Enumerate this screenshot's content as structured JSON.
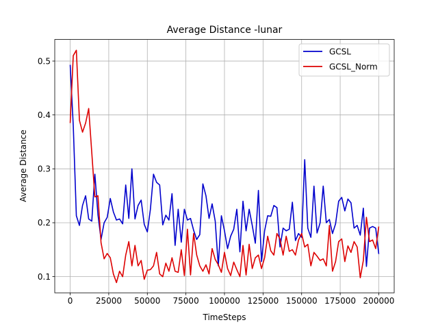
{
  "chart_data": {
    "type": "line",
    "title": "Average Distance -lunar",
    "xlabel": "TimeSteps",
    "ylabel": "Average Distance",
    "xlim": [
      -10000,
      210000
    ],
    "ylim": [
      0.07,
      0.54
    ],
    "xticks": [
      0,
      25000,
      50000,
      75000,
      100000,
      125000,
      150000,
      175000,
      200000
    ],
    "yticks": [
      0.1,
      0.2,
      0.3,
      0.4,
      0.5
    ],
    "grid": true,
    "legend_position": "top-right",
    "series": [
      {
        "name": "GCSL",
        "color": "#0000cc",
        "x": [
          0,
          2000,
          4000,
          6000,
          8000,
          10000,
          12000,
          14000,
          16000,
          18000,
          20000,
          22000,
          24000,
          26000,
          28000,
          30000,
          32000,
          34000,
          36000,
          38000,
          40000,
          42000,
          44000,
          46000,
          48000,
          50000,
          52000,
          54000,
          56000,
          58000,
          60000,
          62000,
          64000,
          66000,
          68000,
          70000,
          72000,
          74000,
          76000,
          78000,
          80000,
          82000,
          84000,
          86000,
          88000,
          90000,
          92000,
          94000,
          96000,
          98000,
          100000,
          102000,
          104000,
          106000,
          108000,
          110000,
          112000,
          114000,
          116000,
          118000,
          120000,
          122000,
          124000,
          126000,
          128000,
          130000,
          132000,
          134000,
          136000,
          138000,
          140000,
          142000,
          144000,
          146000,
          148000,
          150000,
          152000,
          154000,
          156000,
          158000,
          160000,
          162000,
          164000,
          166000,
          168000,
          170000,
          172000,
          174000,
          176000,
          178000,
          180000,
          182000,
          184000,
          186000,
          188000,
          190000,
          192000,
          194000,
          196000,
          198000,
          200000
        ],
        "values": [
          0.493,
          0.38,
          0.213,
          0.195,
          0.232,
          0.25,
          0.207,
          0.203,
          0.29,
          0.215,
          0.169,
          0.2,
          0.21,
          0.245,
          0.22,
          0.205,
          0.207,
          0.198,
          0.27,
          0.208,
          0.3,
          0.207,
          0.232,
          0.242,
          0.197,
          0.183,
          0.225,
          0.29,
          0.275,
          0.27,
          0.196,
          0.214,
          0.205,
          0.254,
          0.158,
          0.225,
          0.164,
          0.225,
          0.205,
          0.208,
          0.186,
          0.169,
          0.178,
          0.272,
          0.25,
          0.208,
          0.235,
          0.203,
          0.12,
          0.213,
          0.185,
          0.152,
          0.175,
          0.188,
          0.225,
          0.146,
          0.24,
          0.185,
          0.225,
          0.195,
          0.162,
          0.26,
          0.128,
          0.185,
          0.213,
          0.212,
          0.232,
          0.228,
          0.155,
          0.19,
          0.185,
          0.188,
          0.238,
          0.167,
          0.18,
          0.173,
          0.317,
          0.19,
          0.173,
          0.268,
          0.181,
          0.2,
          0.268,
          0.2,
          0.206,
          0.18,
          0.198,
          0.24,
          0.247,
          0.222,
          0.244,
          0.237,
          0.19,
          0.195,
          0.177,
          0.227,
          0.119,
          0.19,
          0.193,
          0.19,
          0.142
        ]
      },
      {
        "name": "GCSL_Norm",
        "color": "#dd0000",
        "x": [
          0,
          2000,
          4000,
          6000,
          8000,
          10000,
          12000,
          14000,
          16000,
          18000,
          20000,
          22000,
          24000,
          26000,
          28000,
          30000,
          32000,
          34000,
          36000,
          38000,
          40000,
          42000,
          44000,
          46000,
          48000,
          50000,
          52000,
          54000,
          56000,
          58000,
          60000,
          62000,
          64000,
          66000,
          68000,
          70000,
          72000,
          74000,
          76000,
          78000,
          80000,
          82000,
          84000,
          86000,
          88000,
          90000,
          92000,
          94000,
          96000,
          98000,
          100000,
          102000,
          104000,
          106000,
          108000,
          110000,
          112000,
          114000,
          116000,
          118000,
          120000,
          122000,
          124000,
          126000,
          128000,
          130000,
          132000,
          134000,
          136000,
          138000,
          140000,
          142000,
          144000,
          146000,
          148000,
          150000,
          152000,
          154000,
          156000,
          158000,
          160000,
          162000,
          164000,
          166000,
          168000,
          170000,
          172000,
          174000,
          176000,
          178000,
          180000,
          182000,
          184000,
          186000,
          188000,
          190000,
          192000,
          194000,
          196000,
          198000,
          200000
        ],
        "values": [
          0.385,
          0.51,
          0.52,
          0.39,
          0.368,
          0.385,
          0.412,
          0.33,
          0.248,
          0.25,
          0.163,
          0.133,
          0.143,
          0.135,
          0.105,
          0.089,
          0.11,
          0.1,
          0.14,
          0.165,
          0.12,
          0.158,
          0.12,
          0.13,
          0.095,
          0.112,
          0.113,
          0.12,
          0.145,
          0.105,
          0.1,
          0.125,
          0.11,
          0.135,
          0.11,
          0.108,
          0.15,
          0.102,
          0.188,
          0.103,
          0.18,
          0.14,
          0.12,
          0.11,
          0.122,
          0.105,
          0.152,
          0.132,
          0.122,
          0.108,
          0.145,
          0.115,
          0.102,
          0.127,
          0.113,
          0.1,
          0.158,
          0.103,
          0.16,
          0.115,
          0.135,
          0.14,
          0.115,
          0.135,
          0.175,
          0.148,
          0.14,
          0.18,
          0.17,
          0.14,
          0.175,
          0.147,
          0.15,
          0.14,
          0.168,
          0.18,
          0.155,
          0.16,
          0.12,
          0.145,
          0.138,
          0.13,
          0.133,
          0.12,
          0.195,
          0.11,
          0.128,
          0.165,
          0.17,
          0.128,
          0.157,
          0.145,
          0.165,
          0.155,
          0.098,
          0.13,
          0.21,
          0.165,
          0.168,
          0.152,
          0.193
        ]
      }
    ]
  }
}
